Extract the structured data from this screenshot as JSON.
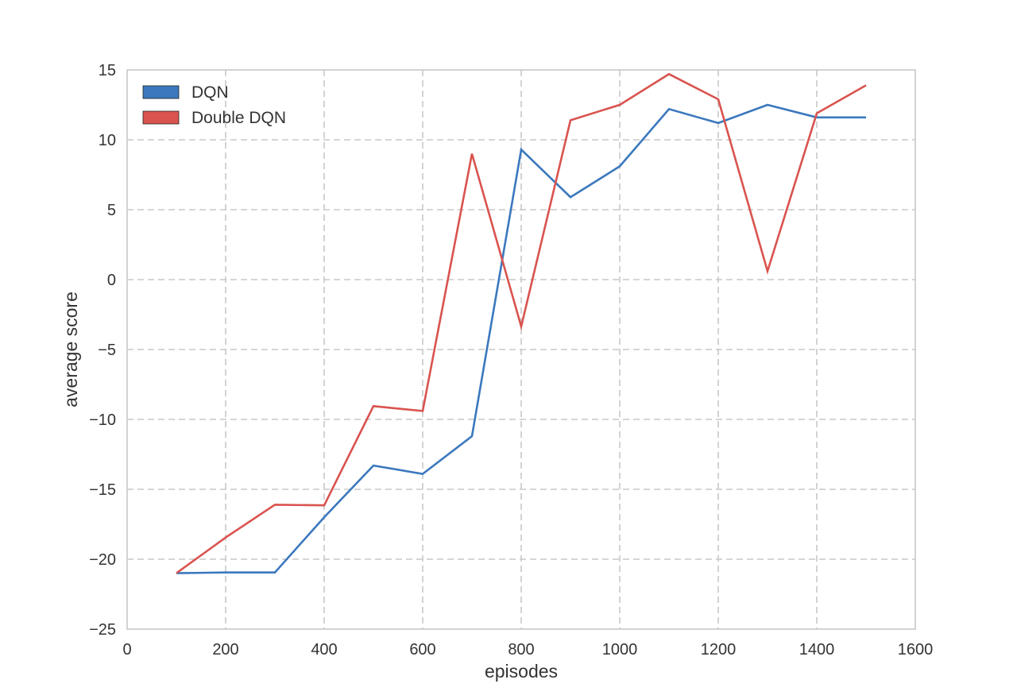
{
  "chart_data": {
    "type": "line",
    "xlabel": "episodes",
    "ylabel": "average score",
    "xlim": [
      0,
      1600
    ],
    "ylim": [
      -25,
      15
    ],
    "xticks": [
      0,
      200,
      400,
      600,
      800,
      1000,
      1200,
      1400,
      1600
    ],
    "yticks": [
      -25,
      -20,
      -15,
      -10,
      -5,
      0,
      5,
      10,
      15
    ],
    "xtick_labels": [
      "0",
      "200",
      "400",
      "600",
      "800",
      "1000",
      "1200",
      "1400",
      "1600"
    ],
    "ytick_labels": [
      "−25",
      "−20",
      "−15",
      "−10",
      "−5",
      "0",
      "5",
      "10",
      "15"
    ],
    "grid": true,
    "legend_position": "top-left",
    "x": [
      100,
      200,
      300,
      400,
      500,
      600,
      700,
      800,
      900,
      1000,
      1100,
      1200,
      1300,
      1400,
      1500
    ],
    "series": [
      {
        "name": "DQN",
        "color": "#3b78bd",
        "values": [
          -21.0,
          -20.95,
          -20.95,
          -17.0,
          -13.3,
          -13.9,
          -11.2,
          9.3,
          5.9,
          8.1,
          12.2,
          11.2,
          12.5,
          11.6,
          11.6
        ]
      },
      {
        "name": "Double DQN",
        "color": "#d9534f",
        "values": [
          -21.0,
          -18.45,
          -16.1,
          -16.15,
          -9.05,
          -9.4,
          9.0,
          -3.35,
          11.4,
          12.5,
          14.7,
          12.9,
          0.6,
          11.9,
          13.9
        ]
      }
    ]
  }
}
